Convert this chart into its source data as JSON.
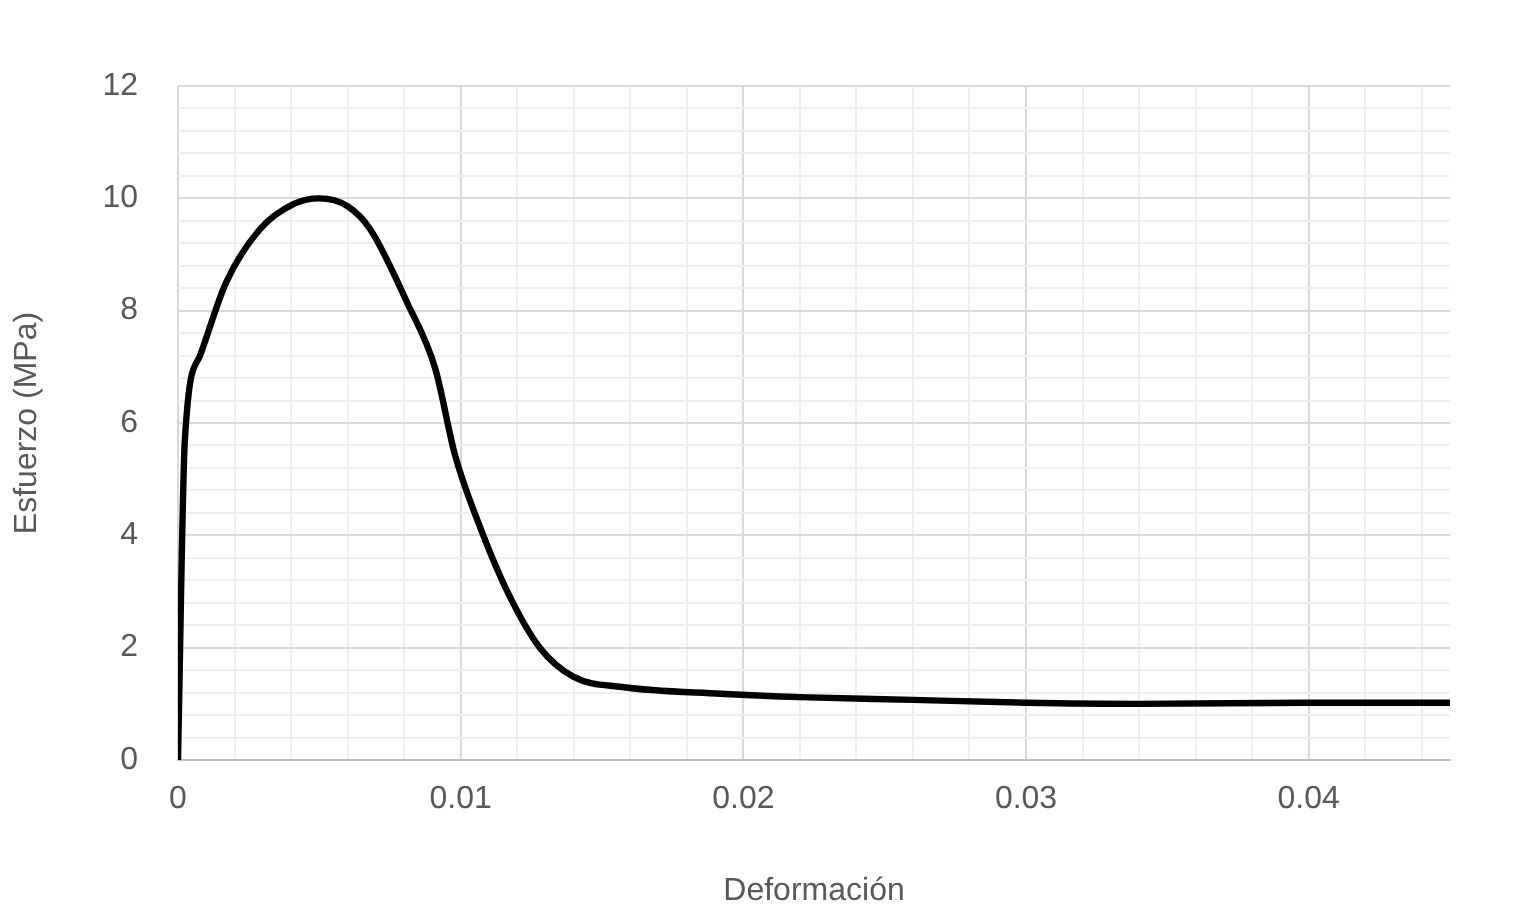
{
  "chart_data": {
    "type": "line",
    "xlabel": "Deformación",
    "ylabel": "Esfuerzo (MPa)",
    "series": [
      {
        "color": "#000000",
        "x": [
          0,
          0.00024,
          0.00078,
          0.0017,
          0.0029,
          0.0041,
          0.005,
          0.006,
          0.0068,
          0.0081,
          0.0091,
          0.0098,
          0.0107,
          0.0117,
          0.0128,
          0.014,
          0.0157,
          0.0192,
          0.022,
          0.026,
          0.03,
          0.034,
          0.04,
          0.045
        ],
        "values": [
          0,
          5.67,
          7.2,
          8.5,
          9.45,
          9.9,
          10,
          9.86,
          9.45,
          8.15,
          6.97,
          5.43,
          4.13,
          2.95,
          2.0,
          1.48,
          1.3,
          1.18,
          1.12,
          1.07,
          1.02,
          1.0,
          1.02,
          1.02
        ]
      }
    ],
    "xlim": [
      0,
      0.045
    ],
    "xticks": [
      0,
      {
        "value": 0.002,
        "label": null
      },
      {
        "value": 0.004,
        "label": null
      },
      {
        "value": 0.006,
        "label": null
      },
      {
        "value": 0.008,
        "label": null
      },
      0.01,
      {
        "value": 0.012,
        "label": null
      },
      {
        "value": 0.014,
        "label": null
      },
      {
        "value": 0.016,
        "label": null
      },
      {
        "value": 0.018,
        "label": null
      },
      0.02,
      {
        "value": 0.022,
        "label": null
      },
      {
        "value": 0.024,
        "label": null
      },
      {
        "value": 0.026,
        "label": null
      },
      {
        "value": 0.028,
        "label": null
      },
      0.03,
      {
        "value": 0.032,
        "label": null
      },
      {
        "value": 0.034,
        "label": null
      },
      {
        "value": 0.036,
        "label": null
      },
      {
        "value": 0.038,
        "label": null
      },
      0.04,
      {
        "value": 0.042,
        "label": null
      },
      {
        "value": 0.044,
        "label": null
      }
    ],
    "ylim": [
      0,
      12
    ],
    "yticks": [
      0,
      {
        "value": 0.4,
        "label": null
      },
      {
        "value": 0.8,
        "label": null
      },
      {
        "value": 1.2,
        "label": null
      },
      {
        "value": 1.6,
        "label": null
      },
      2,
      {
        "value": 2.4,
        "label": null
      },
      {
        "value": 2.8,
        "label": null
      },
      {
        "value": 3.2,
        "label": null
      },
      {
        "value": 3.6,
        "label": null
      },
      4,
      {
        "value": 4.4,
        "label": null
      },
      {
        "value": 4.8,
        "label": null
      },
      {
        "value": 5.2,
        "label": null
      },
      {
        "value": 5.6,
        "label": null
      },
      6,
      {
        "value": 6.4,
        "label": null
      },
      {
        "value": 6.8,
        "label": null
      },
      {
        "value": 7.2,
        "label": null
      },
      {
        "value": 7.6,
        "label": null
      },
      8,
      {
        "value": 8.4,
        "label": null
      },
      {
        "value": 8.8,
        "label": null
      },
      {
        "value": 9.2,
        "label": null
      },
      {
        "value": 9.6,
        "label": null
      },
      10,
      {
        "value": 10.4,
        "label": null
      },
      {
        "value": 10.8,
        "label": null
      },
      {
        "value": 11.2,
        "label": null
      },
      {
        "value": 11.6,
        "label": null
      },
      12
    ],
    "grid": true,
    "legend": false,
    "marker": "none",
    "line_style": "solid"
  }
}
